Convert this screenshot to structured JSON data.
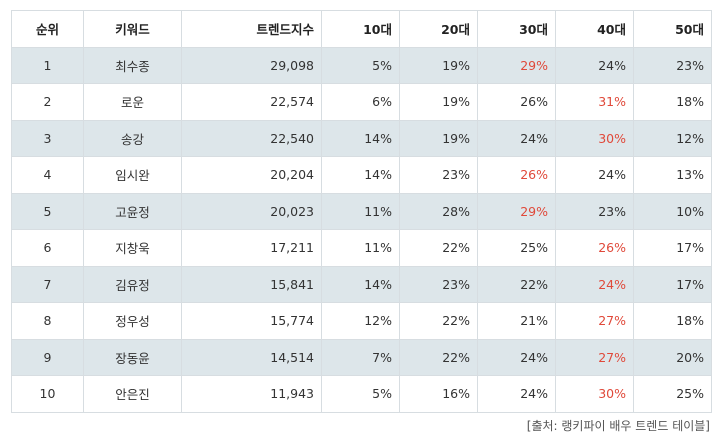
{
  "table": {
    "headers": [
      "순위",
      "키워드",
      "트렌드지수",
      "10대",
      "20대",
      "30대",
      "40대",
      "50대"
    ],
    "rows": [
      {
        "rank": "1",
        "keyword": "최수종",
        "index": "29,098",
        "ages": [
          "5%",
          "19%",
          "29%",
          "24%",
          "23%"
        ],
        "highlight": 2
      },
      {
        "rank": "2",
        "keyword": "로운",
        "index": "22,574",
        "ages": [
          "6%",
          "19%",
          "26%",
          "31%",
          "18%"
        ],
        "highlight": 3
      },
      {
        "rank": "3",
        "keyword": "송강",
        "index": "22,540",
        "ages": [
          "14%",
          "19%",
          "24%",
          "30%",
          "12%"
        ],
        "highlight": 3
      },
      {
        "rank": "4",
        "keyword": "임시완",
        "index": "20,204",
        "ages": [
          "14%",
          "23%",
          "26%",
          "24%",
          "13%"
        ],
        "highlight": 2
      },
      {
        "rank": "5",
        "keyword": "고윤정",
        "index": "20,023",
        "ages": [
          "11%",
          "28%",
          "29%",
          "23%",
          "10%"
        ],
        "highlight": 2
      },
      {
        "rank": "6",
        "keyword": "지창욱",
        "index": "17,211",
        "ages": [
          "11%",
          "22%",
          "25%",
          "26%",
          "17%"
        ],
        "highlight": 3
      },
      {
        "rank": "7",
        "keyword": "김유정",
        "index": "15,841",
        "ages": [
          "14%",
          "23%",
          "22%",
          "24%",
          "17%"
        ],
        "highlight": 3
      },
      {
        "rank": "8",
        "keyword": "정우성",
        "index": "15,774",
        "ages": [
          "12%",
          "22%",
          "21%",
          "27%",
          "18%"
        ],
        "highlight": 3
      },
      {
        "rank": "9",
        "keyword": "장동윤",
        "index": "14,514",
        "ages": [
          "7%",
          "22%",
          "24%",
          "27%",
          "20%"
        ],
        "highlight": 3
      },
      {
        "rank": "10",
        "keyword": "안은진",
        "index": "11,943",
        "ages": [
          "5%",
          "16%",
          "24%",
          "30%",
          "25%"
        ],
        "highlight": 3
      }
    ],
    "highlight_color": "#e0493a",
    "shade_color": "#dde6ea"
  },
  "source": "[출처: 랭키파이 배우 트렌드 테이블]"
}
